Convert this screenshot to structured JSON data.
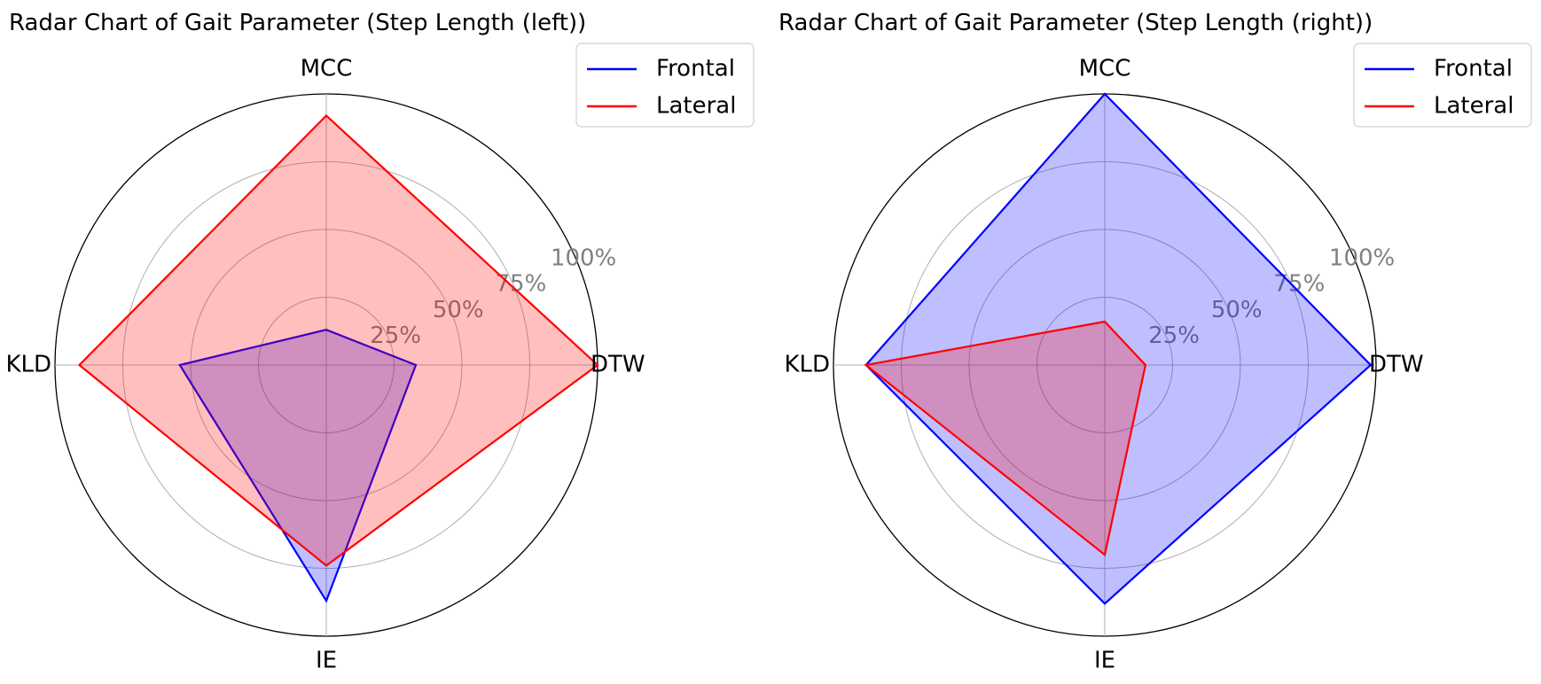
{
  "chart_data": [
    {
      "type": "radar",
      "title": "Radar Chart of Gait Parameter (Step Length (left))",
      "axes": [
        "MCC",
        "DTW",
        "IE",
        "KLD"
      ],
      "radial_ticks": [
        "25%",
        "50%",
        "75%",
        "100%"
      ],
      "radial_range": [
        0,
        100
      ],
      "grid": true,
      "legend_position": "top-right",
      "series": [
        {
          "name": "Frontal",
          "color": "#0000ff",
          "fill": "rgba(0,0,255,0.25)",
          "values": [
            13,
            33,
            87,
            54
          ]
        },
        {
          "name": "Lateral",
          "color": "#ff0000",
          "fill": "rgba(255,0,0,0.25)",
          "values": [
            92,
            100,
            74,
            91
          ]
        }
      ]
    },
    {
      "type": "radar",
      "title": "Radar Chart of Gait Parameter (Step Length (right))",
      "axes": [
        "MCC",
        "DTW",
        "IE",
        "KLD"
      ],
      "radial_ticks": [
        "25%",
        "50%",
        "75%",
        "100%"
      ],
      "radial_range": [
        0,
        100
      ],
      "grid": true,
      "legend_position": "top-right",
      "series": [
        {
          "name": "Frontal",
          "color": "#0000ff",
          "fill": "rgba(0,0,255,0.25)",
          "values": [
            100,
            98,
            88,
            88
          ]
        },
        {
          "name": "Lateral",
          "color": "#ff0000",
          "fill": "rgba(255,0,0,0.25)",
          "values": [
            16,
            15,
            70,
            88
          ]
        }
      ]
    }
  ]
}
